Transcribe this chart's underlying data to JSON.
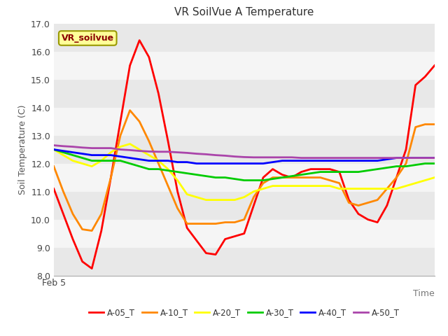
{
  "title": "VR SoilVue A Temperature",
  "ylabel": "Soil Temperature (C)",
  "xlabel": "Time",
  "xticklabel": "Feb 5",
  "ylim": [
    8.0,
    17.0
  ],
  "yticks": [
    8.0,
    9.0,
    10.0,
    11.0,
    12.0,
    13.0,
    14.0,
    15.0,
    16.0,
    17.0
  ],
  "legend_label": "VR_soilvue",
  "band_colors": [
    "#e8e8e8",
    "#f5f5f5"
  ],
  "series": {
    "A-05_T": {
      "color": "#ff0000",
      "y": [
        11.1,
        10.2,
        9.3,
        8.5,
        8.25,
        9.6,
        11.5,
        13.5,
        15.5,
        16.4,
        15.8,
        14.5,
        12.8,
        11.0,
        9.7,
        9.25,
        8.8,
        8.75,
        9.3,
        9.4,
        9.5,
        10.5,
        11.5,
        11.8,
        11.6,
        11.5,
        11.7,
        11.8,
        11.8,
        11.8,
        11.7,
        10.7,
        10.2,
        10.0,
        9.9,
        10.5,
        11.5,
        12.5,
        14.8,
        15.1,
        15.5
      ]
    },
    "A-10_T": {
      "color": "#ff8800",
      "y": [
        11.9,
        11.0,
        10.2,
        9.65,
        9.6,
        10.2,
        11.5,
        13.0,
        13.9,
        13.5,
        12.8,
        12.0,
        11.2,
        10.4,
        9.85,
        9.85,
        9.85,
        9.85,
        9.9,
        9.9,
        10.0,
        10.8,
        11.3,
        11.5,
        11.5,
        11.5,
        11.5,
        11.5,
        11.5,
        11.4,
        11.3,
        10.6,
        10.5,
        10.6,
        10.7,
        11.1,
        11.5,
        12.0,
        13.3,
        13.4,
        13.4
      ]
    },
    "A-20_T": {
      "color": "#ffff00",
      "y": [
        12.5,
        12.3,
        12.1,
        12.0,
        11.9,
        12.1,
        12.4,
        12.6,
        12.7,
        12.5,
        12.3,
        12.1,
        11.8,
        11.4,
        10.9,
        10.8,
        10.7,
        10.7,
        10.7,
        10.7,
        10.8,
        11.0,
        11.1,
        11.2,
        11.2,
        11.2,
        11.2,
        11.2,
        11.2,
        11.2,
        11.1,
        11.1,
        11.1,
        11.1,
        11.1,
        11.1,
        11.1,
        11.2,
        11.3,
        11.4,
        11.5
      ]
    },
    "A-30_T": {
      "color": "#00cc00",
      "y": [
        12.5,
        12.4,
        12.3,
        12.2,
        12.1,
        12.1,
        12.1,
        12.1,
        12.0,
        11.9,
        11.8,
        11.8,
        11.75,
        11.7,
        11.65,
        11.6,
        11.55,
        11.5,
        11.5,
        11.45,
        11.4,
        11.4,
        11.4,
        11.45,
        11.5,
        11.55,
        11.6,
        11.65,
        11.7,
        11.7,
        11.7,
        11.7,
        11.7,
        11.75,
        11.8,
        11.85,
        11.9,
        11.9,
        11.95,
        12.0,
        12.0
      ]
    },
    "A-40_T": {
      "color": "#0000ff",
      "y": [
        12.5,
        12.45,
        12.4,
        12.35,
        12.3,
        12.3,
        12.3,
        12.25,
        12.2,
        12.15,
        12.1,
        12.1,
        12.1,
        12.05,
        12.05,
        12.0,
        12.0,
        12.0,
        12.0,
        12.0,
        12.0,
        12.0,
        12.0,
        12.05,
        12.1,
        12.1,
        12.1,
        12.1,
        12.1,
        12.1,
        12.1,
        12.1,
        12.1,
        12.1,
        12.1,
        12.15,
        12.2,
        12.2,
        12.2,
        12.2,
        12.2
      ]
    },
    "A-50_T": {
      "color": "#aa44aa",
      "y": [
        12.65,
        12.62,
        12.6,
        12.57,
        12.55,
        12.55,
        12.55,
        12.5,
        12.48,
        12.45,
        12.43,
        12.42,
        12.42,
        12.4,
        12.38,
        12.35,
        12.33,
        12.3,
        12.28,
        12.25,
        12.23,
        12.22,
        12.22,
        12.22,
        12.22,
        12.22,
        12.2,
        12.2,
        12.2,
        12.2,
        12.2,
        12.2,
        12.2,
        12.2,
        12.2,
        12.2,
        12.2,
        12.2,
        12.2,
        12.2,
        12.2
      ]
    }
  },
  "series_order": [
    "A-05_T",
    "A-10_T",
    "A-20_T",
    "A-30_T",
    "A-40_T",
    "A-50_T"
  ]
}
